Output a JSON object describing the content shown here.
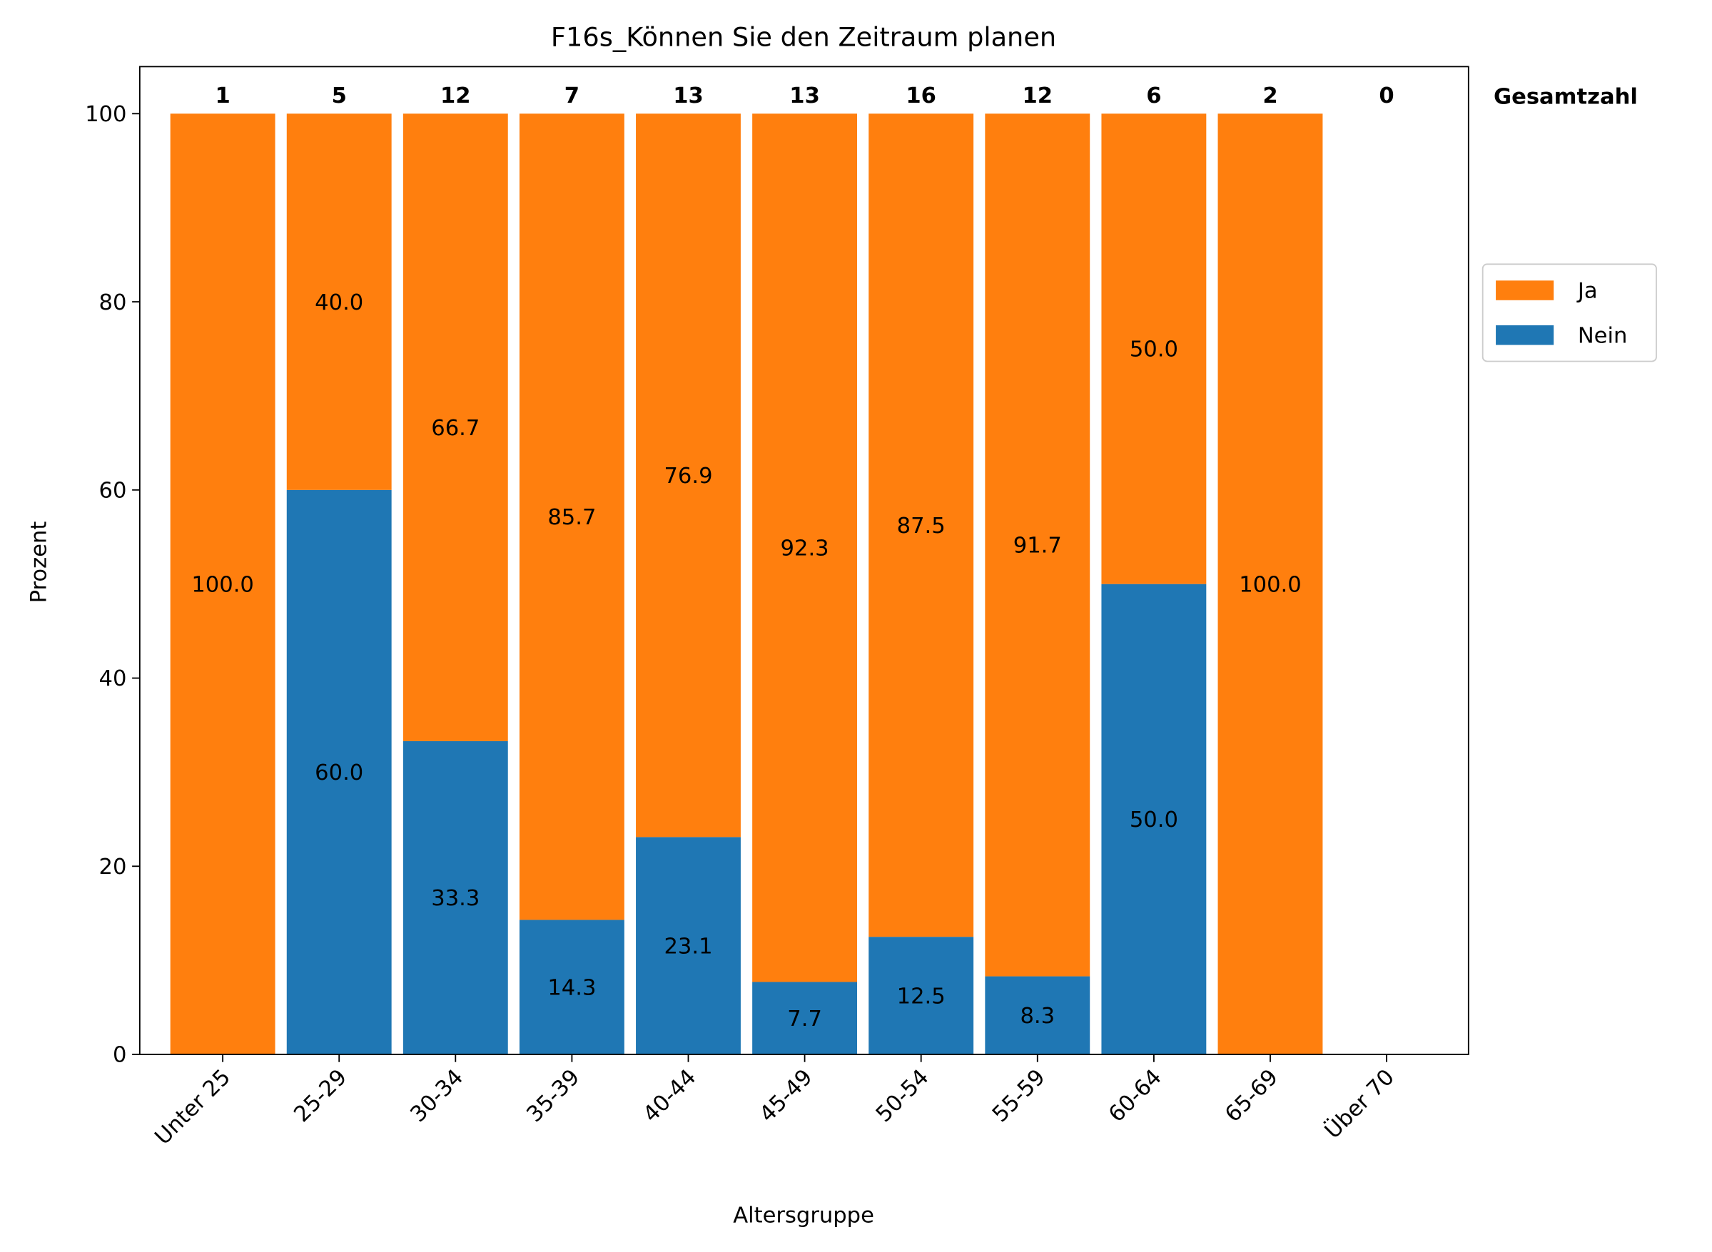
{
  "chart_data": {
    "type": "stacked_bar",
    "title": "F16s_Können Sie den Zeitraum planen",
    "x_label": "Altersgruppe",
    "y_label": "Prozent",
    "categories": [
      "Unter 25",
      "25-29",
      "30-34",
      "35-39",
      "40-44",
      "45-49",
      "50-54",
      "55-59",
      "60-64",
      "65-69",
      "Über 70"
    ],
    "series": [
      {
        "name": "Nein",
        "color": "#1f77b4",
        "values": [
          null,
          60,
          33.3,
          14.3,
          23.1,
          7.7,
          12.5,
          8.3,
          50,
          null,
          null
        ],
        "value_labels": [
          null,
          "60.0",
          "33.3",
          "14.3",
          "23.1",
          "7.7",
          "12.5",
          "8.3",
          "50.0",
          null,
          null
        ]
      },
      {
        "name": "Ja",
        "color": "#ff7f0e",
        "values": [
          100,
          40,
          66.7,
          85.7,
          76.9,
          92.3,
          87.5,
          91.7,
          50,
          100,
          null
        ],
        "value_labels": [
          "100.0",
          "40.0",
          "66.7",
          "85.7",
          "76.9",
          "92.3",
          "87.5",
          "91.7",
          "50.0",
          "100.0",
          null
        ]
      }
    ],
    "totals": {
      "name": "Gesamtzahl",
      "values": [
        1,
        5,
        12,
        7,
        13,
        13,
        16,
        12,
        6,
        2,
        0
      ]
    },
    "ylim": [
      0,
      105
    ],
    "yticks": [
      0,
      20,
      40,
      60,
      80,
      100
    ],
    "legend": "right"
  }
}
